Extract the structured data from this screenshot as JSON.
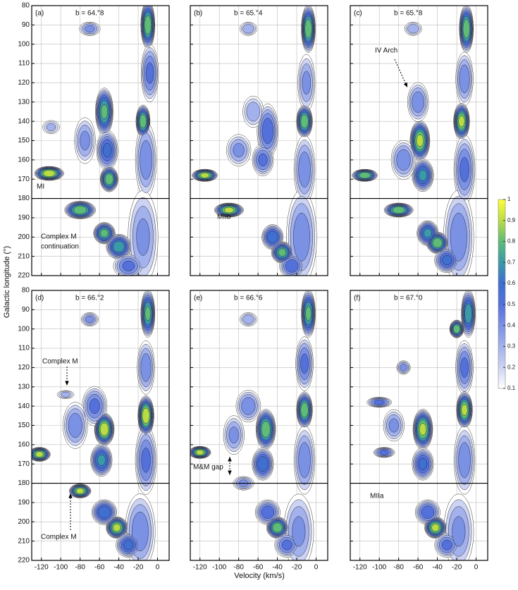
{
  "chart_data": {
    "type": "contour",
    "xlabel": "Velocity (km/s)",
    "ylabel": "Galactic longitude (°)",
    "xlim": [
      -130,
      12
    ],
    "ylim": [
      80,
      220
    ],
    "xticks": [
      -120,
      -100,
      -80,
      -60,
      -40,
      -20,
      0
    ],
    "yticks": [
      80,
      90,
      100,
      110,
      120,
      130,
      140,
      150,
      160,
      170,
      180,
      190,
      200,
      210,
      220
    ],
    "divider": 180,
    "grid": true,
    "colorbar": {
      "lim": [
        0.1,
        1
      ],
      "ticks": [
        0.1,
        0.2,
        0.3,
        0.4,
        0.5,
        0.6,
        0.7,
        0.8,
        0.9,
        1
      ],
      "colors": [
        "#ffffff",
        "#cdd3f2",
        "#a3b1ec",
        "#7b91e4",
        "#5470db",
        "#3f6fd0",
        "#3a9aa8",
        "#5fbb78",
        "#b9dc45",
        "#ffff33"
      ]
    },
    "panels": [
      {
        "label": "(a)",
        "title": "b = 64.°8",
        "annotations": [
          "MI",
          "Complex M",
          "continuation"
        ],
        "features": [
          [
            -10,
            90,
            6,
            12,
            0.85
          ],
          [
            -8,
            115,
            8,
            15,
            0.5
          ],
          [
            -15,
            140,
            6,
            8,
            0.85
          ],
          [
            -12,
            160,
            10,
            20,
            0.45
          ],
          [
            -15,
            200,
            15,
            25,
            0.4
          ],
          [
            -55,
            135,
            8,
            12,
            0.8
          ],
          [
            -52,
            155,
            10,
            10,
            0.6
          ],
          [
            -50,
            170,
            8,
            6,
            0.85
          ],
          [
            -75,
            150,
            10,
            12,
            0.4
          ],
          [
            -112,
            167,
            14,
            3,
            0.95
          ],
          [
            -80,
            186,
            15,
            4,
            0.85
          ],
          [
            -55,
            198,
            10,
            5,
            0.8
          ],
          [
            -40,
            205,
            12,
            6,
            0.75
          ],
          [
            -30,
            215,
            15,
            6,
            0.5
          ],
          [
            -70,
            92,
            10,
            3,
            0.4
          ],
          [
            -110,
            143,
            8,
            3,
            0.3
          ]
        ]
      },
      {
        "label": "(b)",
        "title": "b = 65.°4",
        "annotations": [
          "MIIb"
        ],
        "features": [
          [
            -8,
            92,
            6,
            12,
            0.85
          ],
          [
            -10,
            120,
            8,
            15,
            0.4
          ],
          [
            -12,
            140,
            7,
            8,
            0.85
          ],
          [
            -12,
            165,
            10,
            18,
            0.45
          ],
          [
            -15,
            200,
            15,
            25,
            0.45
          ],
          [
            -50,
            145,
            10,
            14,
            0.55
          ],
          [
            -55,
            160,
            10,
            8,
            0.5
          ],
          [
            -65,
            135,
            10,
            8,
            0.35
          ],
          [
            -115,
            168,
            12,
            2.5,
            0.9
          ],
          [
            -90,
            186,
            14,
            3,
            0.9
          ],
          [
            -45,
            200,
            10,
            6,
            0.65
          ],
          [
            -35,
            208,
            10,
            5,
            0.8
          ],
          [
            -25,
            215,
            12,
            6,
            0.55
          ],
          [
            -70,
            92,
            8,
            3,
            0.35
          ],
          [
            -80,
            155,
            12,
            8,
            0.4
          ]
        ]
      },
      {
        "label": "(c)",
        "title": "b = 65.°8",
        "annotations": [
          "IV Arch"
        ],
        "features": [
          [
            -10,
            92,
            6,
            12,
            0.85
          ],
          [
            -12,
            118,
            8,
            14,
            0.45
          ],
          [
            -15,
            140,
            7,
            9,
            0.9
          ],
          [
            -12,
            165,
            10,
            18,
            0.5
          ],
          [
            -18,
            200,
            15,
            25,
            0.45
          ],
          [
            -58,
            150,
            9,
            10,
            0.9
          ],
          [
            -55,
            168,
            10,
            8,
            0.7
          ],
          [
            -60,
            130,
            10,
            10,
            0.45
          ],
          [
            -115,
            168,
            12,
            2.5,
            0.85
          ],
          [
            -75,
            160,
            12,
            10,
            0.45
          ],
          [
            -80,
            186,
            14,
            3,
            0.85
          ],
          [
            -50,
            198,
            10,
            6,
            0.7
          ],
          [
            -40,
            203,
            10,
            5,
            0.85
          ],
          [
            -30,
            212,
            12,
            6,
            0.6
          ],
          [
            -65,
            92,
            8,
            3,
            0.35
          ]
        ]
      },
      {
        "label": "(d)",
        "title": "b = 66.°2",
        "annotations": [
          "Complex M",
          "Complex M"
        ],
        "features": [
          [
            -10,
            92,
            6,
            12,
            0.8
          ],
          [
            -12,
            120,
            8,
            14,
            0.45
          ],
          [
            -12,
            145,
            7,
            10,
            0.95
          ],
          [
            -12,
            168,
            10,
            18,
            0.5
          ],
          [
            -18,
            205,
            15,
            20,
            0.45
          ],
          [
            -55,
            152,
            9,
            8,
            0.95
          ],
          [
            -58,
            168,
            10,
            8,
            0.7
          ],
          [
            -65,
            140,
            12,
            10,
            0.5
          ],
          [
            -122,
            165,
            10,
            3,
            0.9
          ],
          [
            -85,
            150,
            12,
            12,
            0.45
          ],
          [
            -80,
            184,
            10,
            3,
            0.9
          ],
          [
            -55,
            195,
            12,
            6,
            0.65
          ],
          [
            -42,
            203,
            10,
            5,
            0.9
          ],
          [
            -30,
            212,
            12,
            6,
            0.6
          ],
          [
            -70,
            95,
            8,
            3,
            0.4
          ],
          [
            -95,
            134,
            8,
            1.5,
            0.3
          ]
        ]
      },
      {
        "label": "(e)",
        "title": "b = 66.°6",
        "annotations": [
          "M&M gap"
        ],
        "features": [
          [
            -8,
            92,
            6,
            12,
            0.8
          ],
          [
            -12,
            118,
            8,
            14,
            0.5
          ],
          [
            -12,
            142,
            7,
            9,
            0.85
          ],
          [
            -12,
            168,
            10,
            18,
            0.45
          ],
          [
            -18,
            205,
            15,
            20,
            0.4
          ],
          [
            -52,
            152,
            9,
            10,
            0.85
          ],
          [
            -55,
            170,
            10,
            8,
            0.65
          ],
          [
            -70,
            140,
            12,
            8,
            0.45
          ],
          [
            -120,
            164,
            10,
            2.5,
            0.9
          ],
          [
            -85,
            155,
            10,
            10,
            0.4
          ],
          [
            -75,
            180,
            10,
            3,
            0.4
          ],
          [
            -50,
            195,
            12,
            6,
            0.55
          ],
          [
            -40,
            203,
            10,
            5,
            0.85
          ],
          [
            -30,
            212,
            12,
            6,
            0.5
          ],
          [
            -70,
            95,
            8,
            3,
            0.35
          ]
        ]
      },
      {
        "label": "(f)",
        "title": "b = 67.°0",
        "annotations": [
          "MIIa"
        ],
        "features": [
          [
            -8,
            92,
            6,
            12,
            0.75
          ],
          [
            -20,
            100,
            6,
            4,
            0.85
          ],
          [
            -12,
            120,
            8,
            14,
            0.5
          ],
          [
            -12,
            142,
            7,
            9,
            0.9
          ],
          [
            -12,
            168,
            10,
            18,
            0.45
          ],
          [
            -18,
            205,
            15,
            20,
            0.4
          ],
          [
            -55,
            152,
            9,
            10,
            0.9
          ],
          [
            -55,
            170,
            10,
            8,
            0.6
          ],
          [
            -100,
            138,
            12,
            2,
            0.5
          ],
          [
            -95,
            164,
            10,
            2,
            0.5
          ],
          [
            -85,
            150,
            10,
            8,
            0.4
          ],
          [
            -50,
            195,
            12,
            6,
            0.55
          ],
          [
            -42,
            203,
            10,
            5,
            0.9
          ],
          [
            -30,
            212,
            12,
            6,
            0.5
          ],
          [
            -75,
            120,
            6,
            3,
            0.4
          ]
        ]
      }
    ]
  }
}
